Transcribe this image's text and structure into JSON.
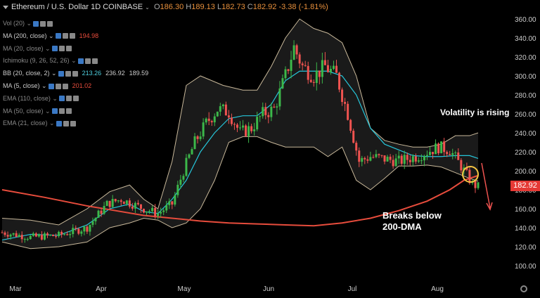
{
  "header": {
    "symbol": "Ethereum / U.S. Dollar",
    "interval": "1D",
    "exchange": "COINBASE",
    "o_label": "O",
    "o": "186.30",
    "h_label": "H",
    "h": "189.13",
    "l_label": "L",
    "l": "182.73",
    "c_label": "C",
    "c": "182.92",
    "change": "-3.38 (-1.81%)"
  },
  "indicators": [
    {
      "label": "Vol (20)",
      "value1": "",
      "value2": "",
      "value3": "",
      "active": false
    },
    {
      "label": "MA (200, close)",
      "value1": "194.98",
      "value2": "",
      "value3": "",
      "active": true,
      "color": "#e74c3c"
    },
    {
      "label": "MA (20, close)",
      "value1": "",
      "value2": "",
      "value3": "",
      "active": false
    },
    {
      "label": "Ichimoku (9, 26, 52, 26)",
      "value1": "",
      "value2": "",
      "value3": "",
      "active": false
    },
    {
      "label": "BB (20, close, 2)",
      "value1": "213.26",
      "value2": "236.92",
      "value3": "189.59",
      "active": true,
      "color": "#4fd1e0"
    },
    {
      "label": "MA (5, close)",
      "value1": "201.02",
      "value2": "",
      "value3": "",
      "active": true,
      "color": "#e74c3c"
    },
    {
      "label": "EMA (110, close)",
      "value1": "",
      "value2": "",
      "value3": "",
      "active": false
    },
    {
      "label": "MA (50, close)",
      "value1": "",
      "value2": "",
      "value3": "",
      "active": false
    },
    {
      "label": "EMA (21, close)",
      "value1": "",
      "value2": "",
      "value3": "",
      "active": false
    }
  ],
  "annotations": {
    "volatility": "Volatility is rising",
    "breaks": "Breaks below\n200-DMA"
  },
  "price_label": "182.92",
  "colors": {
    "up": "#26a69a",
    "up_body": "#3cb84a",
    "down": "#ef5350",
    "ma200": "#e74c3c",
    "bb_mid": "#26c6da",
    "bb_band": "#c8b89a",
    "price_tag": "#e53935"
  },
  "chart_data": {
    "type": "candlestick",
    "y_axis_ticks": [
      "360.00",
      "340.00",
      "320.00",
      "300.00",
      "280.00",
      "260.00",
      "240.00",
      "220.00",
      "200.00",
      "180.00",
      "160.00",
      "140.00",
      "120.00",
      "100.00"
    ],
    "ylim": [
      85,
      370
    ],
    "x_axis_ticks": [
      "Mar",
      "Apr",
      "May",
      "Jun",
      "Jul",
      "Aug"
    ],
    "title": "Ethereum / U.S. Dollar 1D COINBASE",
    "ma200": [
      [
        0,
        180
      ],
      [
        15,
        172
      ],
      [
        30,
        163
      ],
      [
        40,
        158
      ],
      [
        50,
        153
      ],
      [
        60,
        150
      ],
      [
        70,
        147
      ],
      [
        80,
        145
      ],
      [
        90,
        144
      ],
      [
        100,
        143
      ],
      [
        110,
        142
      ],
      [
        120,
        145
      ],
      [
        130,
        150
      ],
      [
        140,
        158
      ],
      [
        150,
        168
      ],
      [
        158,
        180
      ],
      [
        163,
        190
      ],
      [
        168,
        195
      ]
    ],
    "bb_upper": [
      [
        0,
        150
      ],
      [
        10,
        148
      ],
      [
        20,
        143
      ],
      [
        30,
        160
      ],
      [
        38,
        178
      ],
      [
        45,
        185
      ],
      [
        50,
        170
      ],
      [
        55,
        160
      ],
      [
        60,
        210
      ],
      [
        65,
        290
      ],
      [
        70,
        300
      ],
      [
        78,
        290
      ],
      [
        85,
        285
      ],
      [
        90,
        285
      ],
      [
        95,
        310
      ],
      [
        100,
        340
      ],
      [
        105,
        360
      ],
      [
        110,
        350
      ],
      [
        115,
        345
      ],
      [
        120,
        335
      ],
      [
        125,
        300
      ],
      [
        130,
        245
      ],
      [
        135,
        232
      ],
      [
        140,
        228
      ],
      [
        145,
        225
      ],
      [
        150,
        225
      ],
      [
        155,
        228
      ],
      [
        160,
        237
      ],
      [
        165,
        237
      ],
      [
        168,
        240
      ]
    ],
    "bb_lower": [
      [
        0,
        125
      ],
      [
        10,
        118
      ],
      [
        20,
        120
      ],
      [
        30,
        125
      ],
      [
        38,
        140
      ],
      [
        45,
        145
      ],
      [
        50,
        150
      ],
      [
        55,
        148
      ],
      [
        60,
        140
      ],
      [
        65,
        145
      ],
      [
        70,
        160
      ],
      [
        75,
        190
      ],
      [
        80,
        230
      ],
      [
        85,
        236
      ],
      [
        90,
        236
      ],
      [
        95,
        230
      ],
      [
        100,
        225
      ],
      [
        105,
        225
      ],
      [
        110,
        225
      ],
      [
        115,
        215
      ],
      [
        120,
        225
      ],
      [
        125,
        190
      ],
      [
        130,
        180
      ],
      [
        135,
        192
      ],
      [
        140,
        205
      ],
      [
        145,
        205
      ],
      [
        150,
        206
      ],
      [
        155,
        204
      ],
      [
        160,
        198
      ],
      [
        165,
        192
      ],
      [
        168,
        189
      ]
    ],
    "bb_mid": [
      [
        0,
        127
      ],
      [
        10,
        133
      ],
      [
        20,
        132
      ],
      [
        30,
        143
      ],
      [
        38,
        160
      ],
      [
        45,
        165
      ],
      [
        50,
        157
      ],
      [
        55,
        155
      ],
      [
        60,
        170
      ],
      [
        65,
        190
      ],
      [
        70,
        220
      ],
      [
        75,
        240
      ],
      [
        80,
        255
      ],
      [
        85,
        258
      ],
      [
        90,
        258
      ],
      [
        95,
        270
      ],
      [
        100,
        295
      ],
      [
        105,
        305
      ],
      [
        110,
        305
      ],
      [
        115,
        305
      ],
      [
        120,
        300
      ],
      [
        125,
        280
      ],
      [
        130,
        245
      ],
      [
        135,
        228
      ],
      [
        140,
        222
      ],
      [
        145,
        216
      ],
      [
        150,
        215
      ],
      [
        155,
        215
      ],
      [
        160,
        216
      ],
      [
        165,
        216
      ],
      [
        168,
        213
      ]
    ]
  }
}
